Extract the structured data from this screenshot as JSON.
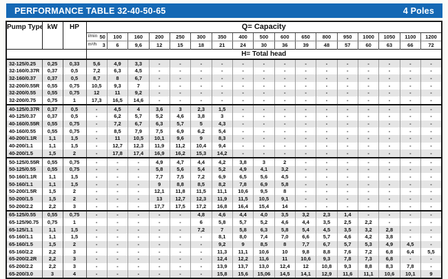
{
  "colors": {
    "title_bar_bg": "#1568b4",
    "title_text": "#ffffff",
    "row_alt_gray": "#e4e4e4",
    "border_dark": "#1a1a1a"
  },
  "title_bar": {
    "title": "PERFORMANCE TABLE 32-40-50-65",
    "right_label": "4 Poles"
  },
  "table": {
    "headers": {
      "pump_type": "Pump Type",
      "kw": "kW",
      "hp": "HP",
      "capacity": "Q= Capacity",
      "flow_lmin_label": "l/min",
      "flow_m3h_label": "m³/h",
      "total_head": "H= Total head"
    },
    "lmin_values": [
      "50",
      "100",
      "160",
      "200",
      "250",
      "300",
      "350",
      "400",
      "500",
      "600",
      "650",
      "800",
      "950",
      "1000",
      "1050",
      "1100",
      "1200"
    ],
    "m3h_values": [
      "3",
      "6",
      "9,6",
      "12",
      "15",
      "18",
      "21",
      "24",
      "30",
      "36",
      "39",
      "48",
      "57",
      "60",
      "63",
      "66",
      "72"
    ],
    "groups": [
      {
        "rows": [
          {
            "name": "32-125/0.25",
            "kw": "0,25",
            "hp": "0,33",
            "values": [
              "5,6",
              "4,9",
              "3,3",
              "-",
              "-",
              "-",
              "-",
              "-",
              "-",
              "-",
              "-",
              "-",
              "-",
              "-",
              "-",
              "-",
              "-"
            ]
          },
          {
            "name": "32-160/0.37R",
            "kw": "0,37",
            "hp": "0,5",
            "values": [
              "7,2",
              "6,3",
              "4,5",
              "-",
              "-",
              "-",
              "-",
              "-",
              "-",
              "-",
              "-",
              "-",
              "-",
              "-",
              "-",
              "-",
              "-"
            ]
          },
          {
            "name": "32-160/0.37",
            "kw": "0,37",
            "hp": "0,5",
            "values": [
              "8,7",
              "8",
              "6,7",
              "-",
              "-",
              "-",
              "-",
              "-",
              "-",
              "-",
              "-",
              "-",
              "-",
              "-",
              "-",
              "-",
              "-"
            ]
          },
          {
            "name": "32-200/0.55R",
            "kw": "0,55",
            "hp": "0,75",
            "values": [
              "10,5",
              "9,3",
              "7",
              "-",
              "-",
              "-",
              "-",
              "-",
              "-",
              "-",
              "-",
              "-",
              "-",
              "-",
              "-",
              "-",
              "-"
            ]
          },
          {
            "name": "32-200/0.55",
            "kw": "0,55",
            "hp": "0,75",
            "values": [
              "12",
              "11",
              "9,2",
              "-",
              "-",
              "-",
              "-",
              "-",
              "-",
              "-",
              "-",
              "-",
              "-",
              "-",
              "-",
              "-",
              "-"
            ]
          },
          {
            "name": "32-200/0.75",
            "kw": "0,75",
            "hp": "1",
            "values": [
              "17,3",
              "16,5",
              "14,6",
              "-",
              "-",
              "-",
              "-",
              "-",
              "-",
              "-",
              "-",
              "-",
              "-",
              "-",
              "-",
              "-",
              "-"
            ]
          }
        ]
      },
      {
        "rows": [
          {
            "name": "40-125/0.37R",
            "kw": "0,37",
            "hp": "0,5",
            "values": [
              "-",
              "4,5",
              "4",
              "3,6",
              "3",
              "2,3",
              "1,5",
              "-",
              "-",
              "-",
              "-",
              "-",
              "-",
              "-",
              "-",
              "-",
              "-"
            ]
          },
          {
            "name": "40-125/0.37",
            "kw": "0,37",
            "hp": "0,5",
            "values": [
              "-",
              "6,2",
              "5,7",
              "5,2",
              "4,6",
              "3,8",
              "3",
              "-",
              "-",
              "-",
              "-",
              "-",
              "-",
              "-",
              "-",
              "-",
              "-"
            ]
          },
          {
            "name": "40-160/0.55R",
            "kw": "0,55",
            "hp": "0,75",
            "values": [
              "-",
              "7,2",
              "6,7",
              "6,3",
              "5,7",
              "5",
              "4,3",
              "-",
              "-",
              "-",
              "-",
              "-",
              "-",
              "-",
              "-",
              "-",
              "-"
            ]
          },
          {
            "name": "40-160/0.55",
            "kw": "0,55",
            "hp": "0,75",
            "values": [
              "-",
              "8,5",
              "7,9",
              "7,5",
              "6,9",
              "6,2",
              "5,4",
              "-",
              "-",
              "-",
              "-",
              "-",
              "-",
              "-",
              "-",
              "-",
              "-"
            ]
          },
          {
            "name": "40-200/1.1R",
            "kw": "1,1",
            "hp": "1,5",
            "values": [
              "-",
              "11",
              "10,5",
              "10,1",
              "9,6",
              "9",
              "8,3",
              "-",
              "-",
              "-",
              "-",
              "-",
              "-",
              "-",
              "-",
              "-",
              "-"
            ]
          },
          {
            "name": "40-200/1.1",
            "kw": "1,1",
            "hp": "1,5",
            "values": [
              "-",
              "12,7",
              "12,3",
              "11,9",
              "11,2",
              "10,4",
              "9,4",
              "-",
              "-",
              "-",
              "-",
              "-",
              "-",
              "-",
              "-",
              "-",
              "-"
            ]
          },
          {
            "name": "40-200/1.5",
            "kw": "1,5",
            "hp": "2",
            "values": [
              "-",
              "17,8",
              "17,4",
              "16,9",
              "16,2",
              "15,3",
              "14,2",
              "-",
              "-",
              "-",
              "-",
              "-",
              "-",
              "-",
              "-",
              "-",
              "-"
            ]
          }
        ]
      },
      {
        "rows": [
          {
            "name": "50-125/0.55R",
            "kw": "0,55",
            "hp": "0,75",
            "values": [
              "-",
              "-",
              "-",
              "4,9",
              "4,7",
              "4,4",
              "4,2",
              "3,8",
              "3",
              "2",
              "-",
              "-",
              "-",
              "-",
              "-",
              "-",
              "-"
            ]
          },
          {
            "name": "50-125/0.55",
            "kw": "0,55",
            "hp": "0,75",
            "values": [
              "-",
              "-",
              "-",
              "5,8",
              "5,6",
              "5,4",
              "5,2",
              "4,9",
              "4,1",
              "3,2",
              "-",
              "-",
              "-",
              "-",
              "-",
              "-",
              "-"
            ]
          },
          {
            "name": "50-160/1.1R",
            "kw": "1,1",
            "hp": "1,5",
            "values": [
              "-",
              "-",
              "-",
              "7,7",
              "7,5",
              "7,2",
              "6,9",
              "6,5",
              "5,6",
              "4,5",
              "-",
              "-",
              "-",
              "-",
              "-",
              "-",
              "-"
            ]
          },
          {
            "name": "50-160/1.1",
            "kw": "1,1",
            "hp": "1,5",
            "values": [
              "-",
              "-",
              "-",
              "9",
              "8,8",
              "8,5",
              "8,2",
              "7,8",
              "6,9",
              "5,8",
              "-",
              "-",
              "-",
              "-",
              "-",
              "-",
              "-"
            ]
          },
          {
            "name": "50-200/1.5R",
            "kw": "1,5",
            "hp": "2",
            "values": [
              "-",
              "-",
              "-",
              "12,1",
              "11,8",
              "11,5",
              "11,1",
              "10,6",
              "9,5",
              "8",
              "-",
              "-",
              "-",
              "-",
              "-",
              "-",
              "-"
            ]
          },
          {
            "name": "50-200/1.5",
            "kw": "1,5",
            "hp": "2",
            "values": [
              "-",
              "-",
              "-",
              "13",
              "12,7",
              "12,3",
              "11,9",
              "11,5",
              "10,5",
              "9,1",
              "-",
              "-",
              "-",
              "-",
              "-",
              "-",
              "-"
            ]
          },
          {
            "name": "50-200/2.2",
            "kw": "2,2",
            "hp": "3",
            "values": [
              "-",
              "-",
              "-",
              "17,7",
              "17,5",
              "17,2",
              "16,8",
              "16,4",
              "15,4",
              "14",
              "-",
              "-",
              "-",
              "-",
              "-",
              "-",
              "-"
            ]
          }
        ]
      },
      {
        "rows": [
          {
            "name": "65-125/0.55",
            "kw": "0,55",
            "hp": "0,75",
            "values": [
              "-",
              "-",
              "-",
              "-",
              "-",
              "4,8",
              "4,6",
              "4,4",
              "4,0",
              "3,5",
              "3,2",
              "2,3",
              "1,4",
              "-",
              "-",
              "-",
              "-"
            ]
          },
          {
            "name": "65-125/90.75",
            "kw": "0,75",
            "hp": "1",
            "values": [
              "-",
              "-",
              "-",
              "-",
              "-",
              "6",
              "5,8",
              "5,7",
              "5,2",
              "4,6",
              "4,4",
              "3,5",
              "2,5",
              "2,2",
              "-",
              "-",
              "-"
            ]
          },
          {
            "name": "65-125/1.1",
            "kw": "1,1",
            "hp": "1,5",
            "values": [
              "-",
              "-",
              "-",
              "-",
              "-",
              "7,2",
              "7",
              "5,8",
              "6,3",
              "5,8",
              "5,4",
              "4,5",
              "3,5",
              "3,2",
              "2,8",
              "-",
              "-"
            ]
          },
          {
            "name": "65-160/1.1",
            "kw": "1,1",
            "hp": "1,5",
            "values": [
              "-",
              "-",
              "-",
              "-",
              "-",
              "-",
              "8,1",
              "8,0",
              "7,4",
              "7,0",
              "6,6",
              "5,7",
              "4,6",
              "4,2",
              "3,8",
              "-",
              "-"
            ]
          },
          {
            "name": "65-160/1.5",
            "kw": "1,5",
            "hp": "2",
            "values": [
              "-",
              "-",
              "-",
              "-",
              "-",
              "-",
              "9,2",
              "9",
              "8,5",
              "8",
              "7,7",
              "6,7",
              "5,7",
              "5,3",
              "4,9",
              "4,5",
              "-"
            ]
          },
          {
            "name": "65-160/2.2",
            "kw": "2,2",
            "hp": "3",
            "values": [
              "-",
              "-",
              "-",
              "-",
              "-",
              "-",
              "11,3",
              "11,1",
              "10,6",
              "10",
              "9,8",
              "8,8",
              "7,6",
              "7,2",
              "6,8",
              "6,4",
              "5,5"
            ]
          },
          {
            "name": "65-200/2.2R",
            "kw": "2,2",
            "hp": "3",
            "values": [
              "-",
              "-",
              "-",
              "-",
              "-",
              "-",
              "12,4",
              "12,2",
              "11,6",
              "11",
              "10,6",
              "9,3",
              "7,8",
              "7,3",
              "6,8",
              "-",
              "-"
            ]
          },
          {
            "name": "65-200/2.2",
            "kw": "2,2",
            "hp": "3",
            "values": [
              "-",
              "-",
              "-",
              "-",
              "-",
              "-",
              "13,9",
              "13,7",
              "13,0",
              "12,4",
              "12",
              "10,8",
              "9,3",
              "8,8",
              "8,3",
              "7,8",
              "-"
            ]
          },
          {
            "name": "65-200/3.0",
            "kw": "3",
            "hp": "4",
            "values": [
              "-",
              "-",
              "-",
              "-",
              "-",
              "-",
              "15,8",
              "15,6",
              "15,06",
              "14,5",
              "14,1",
              "12,9",
              "11,6",
              "11,1",
              "10,6",
              "10,1",
              "9"
            ]
          }
        ]
      }
    ]
  }
}
